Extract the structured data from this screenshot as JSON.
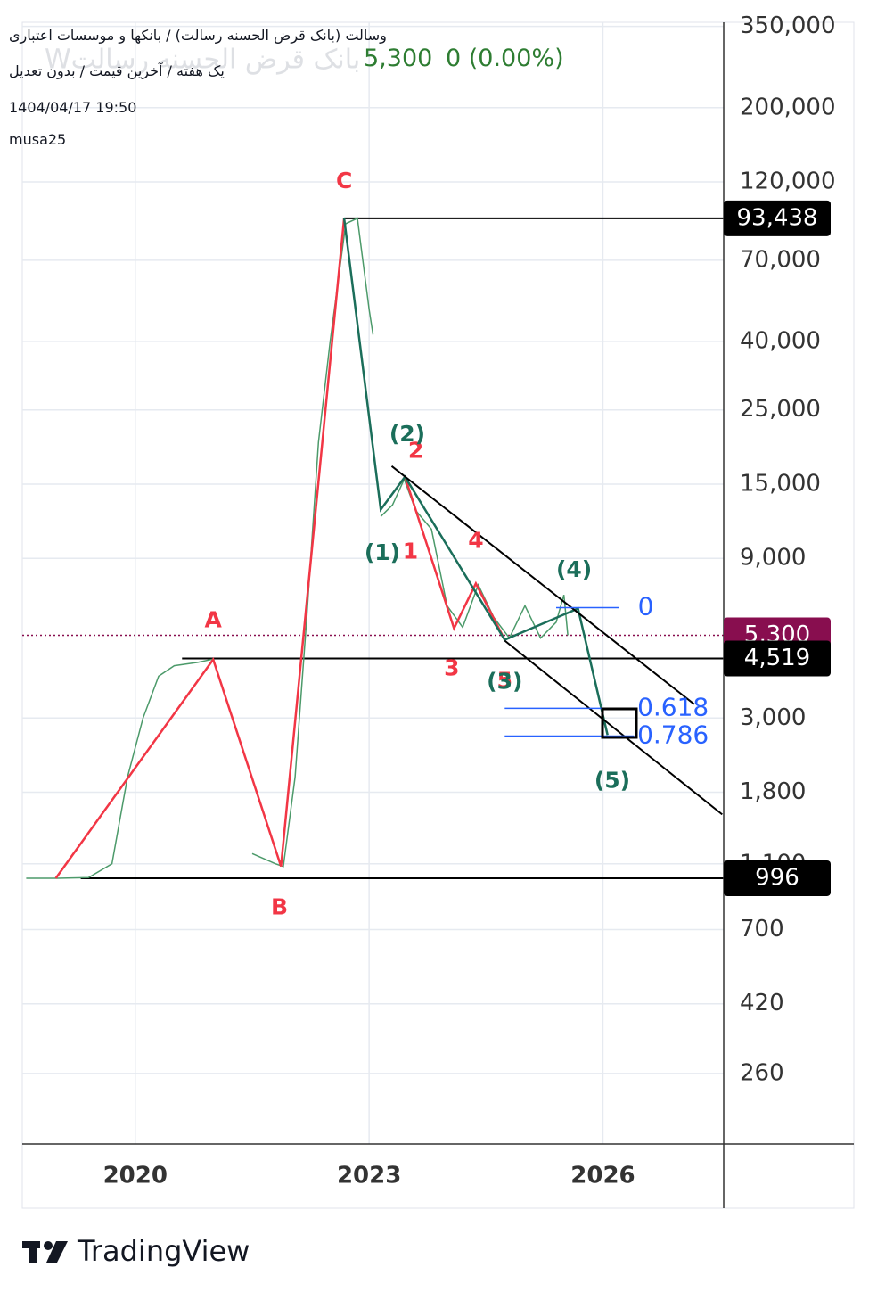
{
  "header": {
    "title": "وسالت (بانک قرض الحسنه رسالت) / بانکها و موسسات اعتباری",
    "subtitle": "یک هفته / آخرین قیمت / بدون تعدیل",
    "timestamp": "1404/04/17 19:50",
    "author": "musa25",
    "watermark": "Wبانک قرض الحسنه رسالت",
    "last_price": "5,300",
    "change": "0 (0.00%)"
  },
  "footer": {
    "brand": "TradingView"
  },
  "chart_data": {
    "type": "line",
    "log_scale": true,
    "grid": true,
    "xlim": [
      2018.55,
      2027.55
    ],
    "ylim": [
      160,
      360000
    ],
    "xticks": [
      2020,
      2023,
      2026
    ],
    "yticks": [
      {
        "value": 350000,
        "label": "350,000"
      },
      {
        "value": 200000,
        "label": "200,000"
      },
      {
        "value": 120000,
        "label": "120,000"
      },
      {
        "value": 70000,
        "label": "70,000"
      },
      {
        "value": 40000,
        "label": "40,000"
      },
      {
        "value": 25000,
        "label": "25,000"
      },
      {
        "value": 15000,
        "label": "15,000"
      },
      {
        "value": 9000,
        "label": "9,000"
      },
      {
        "value": 3000,
        "label": "3,000"
      },
      {
        "value": 1800,
        "label": "1,800"
      },
      {
        "value": 1100,
        "label": "1,100"
      },
      700,
      420,
      260
    ],
    "series": [
      {
        "color": "#4c9a6a",
        "width": 1.5,
        "x": [
          2018.6,
          2019.0,
          2019.4,
          2019.7,
          2019.9,
          2020.1,
          2020.3,
          2020.5,
          2020.8,
          2021.0,
          2021.2,
          2021.5,
          2021.8,
          2021.9,
          2022.05,
          2022.2,
          2022.35,
          2022.5,
          2022.7,
          2022.85,
          2023.0,
          2023.05,
          2023.1,
          2023.15,
          2023.3,
          2023.45,
          2023.6,
          2023.8,
          2024.0,
          2024.2,
          2024.4,
          2024.6,
          2024.8,
          2025.0,
          2025.2,
          2025.4,
          2025.5,
          2025.55
        ],
        "values": [
          996,
          996,
          1000,
          1100,
          2000,
          3000,
          4000,
          4300,
          4400,
          4500,
          null,
          1180,
          1100,
          1080,
          2000,
          6000,
          20000,
          40000,
          90000,
          93438,
          50000,
          42000,
          null,
          12000,
          13000,
          15500,
          12500,
          11000,
          6500,
          5600,
          7500,
          6000,
          5200,
          6500,
          5200,
          5800,
          7000,
          5300
        ]
      },
      {
        "color": "#f23645",
        "width": 2.5,
        "x": [
          2018.98,
          2021.0,
          2021.87,
          2022.68
        ],
        "values": [
          996,
          4490,
          1081,
          93438
        ]
      },
      {
        "color": "#f23645",
        "width": 2.5,
        "x": [
          2023.46,
          2024.09,
          2024.37,
          2024.74
        ],
        "values": [
          15780,
          5560,
          7570,
          5140
        ]
      },
      {
        "color": "#1b6e5a",
        "width": 2.5,
        "x": [
          2022.68,
          2023.15,
          2023.46,
          2024.74,
          2025.68,
          2026.06
        ],
        "values": [
          93438,
          12590,
          15780,
          5140,
          6370,
          2670
        ]
      },
      {
        "color": "#000000",
        "width": 2,
        "x": [
          2023.29,
          2027.17
        ],
        "values": [
          16980,
          3300
        ]
      },
      {
        "color": "#000000",
        "width": 2,
        "x": [
          2024.74,
          2027.53
        ],
        "values": [
          5110,
          1545
        ]
      },
      {
        "color": "#2962ff",
        "width": 1.5,
        "x": [
          2025.4,
          2026.2
        ],
        "values": [
          6410,
          6410
        ]
      },
      {
        "color": "#2962ff",
        "width": 1.5,
        "x": [
          2024.74,
          2026.4
        ],
        "values": [
          3206,
          3206
        ]
      },
      {
        "color": "#2962ff",
        "width": 1.5,
        "x": [
          2024.74,
          2026.4
        ],
        "values": [
          2650,
          2650
        ]
      }
    ],
    "levels": [
      {
        "value": 93438,
        "label": "93,438",
        "x_start": 2022.68,
        "color": "#000000",
        "style": "solid"
      },
      {
        "value": 5300,
        "label": "5,300",
        "x_start": 2018.55,
        "color": "#880e4f",
        "style": "dotted"
      },
      {
        "value": 4519,
        "label": "4,519",
        "x_start": 2020.6,
        "color": "#000000",
        "style": "solid"
      },
      {
        "value": 996,
        "label": "996",
        "x_start": 2019.3,
        "color": "#000000",
        "style": "solid"
      }
    ],
    "annotations": [
      {
        "text": "C",
        "x": 2022.68,
        "y": 120000,
        "color": "#f23645"
      },
      {
        "text": "A",
        "x": 2021.0,
        "y": 5850,
        "color": "#f23645"
      },
      {
        "text": "B",
        "x": 2021.85,
        "y": 811,
        "color": "#f23645"
      },
      {
        "text": "1",
        "x": 2023.53,
        "y": 9380,
        "color": "#f23645"
      },
      {
        "text": "2",
        "x": 2023.6,
        "y": 18750,
        "color": "#f23645"
      },
      {
        "text": "3",
        "x": 2024.06,
        "y": 4200,
        "color": "#f23645"
      },
      {
        "text": "4",
        "x": 2024.37,
        "y": 10090,
        "color": "#f23645"
      },
      {
        "text": "5",
        "x": 2024.74,
        "y": 3855,
        "color": "#f23645"
      },
      {
        "text": "(1)",
        "x": 2023.17,
        "y": 9290,
        "color": "#1b6e5a"
      },
      {
        "text": "(2)",
        "x": 2023.49,
        "y": 21040,
        "color": "#1b6e5a"
      },
      {
        "text": "(3)",
        "x": 2024.74,
        "y": 3830,
        "color": "#1b6e5a"
      },
      {
        "text": "(4)",
        "x": 2025.63,
        "y": 8280,
        "color": "#1b6e5a"
      },
      {
        "text": "(5)",
        "x": 2026.12,
        "y": 1936,
        "color": "#1b6e5a"
      },
      {
        "text": "0",
        "x": 2026.55,
        "y": 6410,
        "color": "#2962ff"
      },
      {
        "text": "0.618",
        "x": 2026.9,
        "y": 3206,
        "color": "#2962ff"
      },
      {
        "text": "0.786",
        "x": 2026.9,
        "y": 2650,
        "color": "#2962ff"
      }
    ]
  }
}
